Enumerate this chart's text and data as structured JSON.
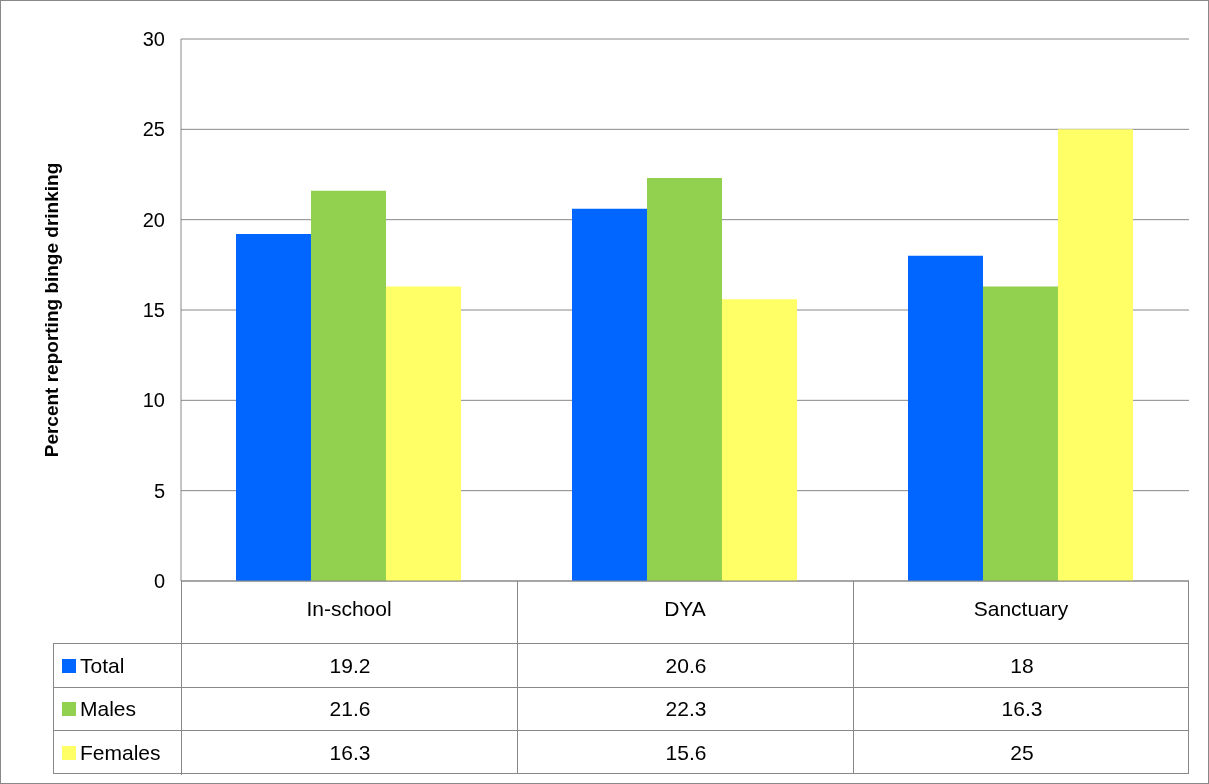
{
  "chart_data": {
    "type": "bar",
    "ylabel": "Percent reporting binge drinking",
    "categories": [
      "In-school",
      "DYA",
      "Sanctuary"
    ],
    "series": [
      {
        "name": "Total",
        "color": "#0066ff",
        "values": [
          19.2,
          20.6,
          18
        ]
      },
      {
        "name": "Males",
        "color": "#92d050",
        "values": [
          21.6,
          22.3,
          16.3
        ]
      },
      {
        "name": "Females",
        "color": "#ffff66",
        "values": [
          16.3,
          15.6,
          25
        ]
      }
    ],
    "ylim": [
      0,
      30
    ],
    "yticks": [
      0,
      5,
      10,
      15,
      20,
      25,
      30
    ],
    "grid": "y",
    "legend": "bottom",
    "data_labels": true
  }
}
